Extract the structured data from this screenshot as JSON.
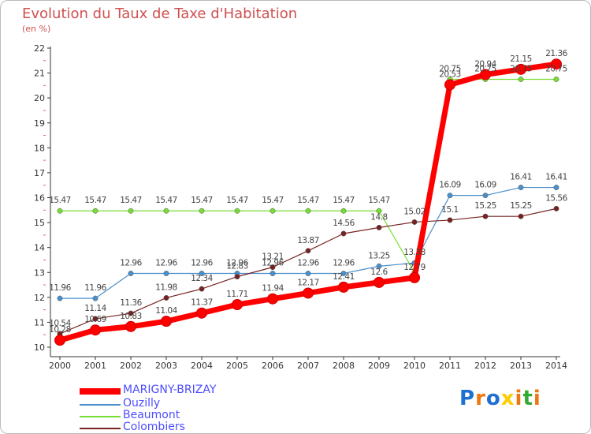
{
  "chart_data": {
    "type": "line",
    "title": "Evolution du Taux de Taxe d'Habitation",
    "unit_label": "(en %)",
    "categories": [
      "2000",
      "2001",
      "2002",
      "2003",
      "2004",
      "2005",
      "2006",
      "2007",
      "2008",
      "2009",
      "2010",
      "2011",
      "2012",
      "2013",
      "2014"
    ],
    "ylim": [
      10,
      22
    ],
    "yticks": [
      "10",
      "11",
      "12",
      "13",
      "14",
      "15",
      "16",
      "17",
      "18",
      "19",
      "20",
      "21",
      "22"
    ],
    "grid": false,
    "legend_position": "bottom-left",
    "series": [
      {
        "name": "MARIGNY-BRIZAY",
        "color": "#ff0000",
        "values": [
          10.28,
          10.69,
          10.83,
          11.04,
          11.37,
          11.71,
          11.94,
          12.17,
          12.41,
          12.6,
          12.79,
          20.53,
          20.94,
          21.15,
          21.36
        ],
        "labels": [
          "10.28",
          "10.69",
          "10.83",
          "11.04",
          "11.37",
          "11.71",
          "11.94",
          "12.17",
          "12.41",
          "12.6",
          "12.79",
          "20.53",
          "20.94",
          "21.15",
          "21.36"
        ]
      },
      {
        "name": "Ouzilly",
        "color": "#4a8fcc",
        "values": [
          11.96,
          11.96,
          12.96,
          12.96,
          12.96,
          12.96,
          12.96,
          12.96,
          12.96,
          13.25,
          13.38,
          16.09,
          16.09,
          16.41,
          16.41
        ],
        "labels": [
          "11.96",
          "11.96",
          "12.96",
          "12.96",
          "12.96",
          "12.96",
          "12.96",
          "12.96",
          "12.96",
          "13.25",
          "13.38",
          "16.09",
          "16.09",
          "16.41",
          "16.41"
        ]
      },
      {
        "name": "Beaumont",
        "color": "#77dd33",
        "values": [
          15.47,
          15.47,
          15.47,
          15.47,
          15.47,
          15.47,
          15.47,
          15.47,
          15.47,
          15.47,
          13.0,
          20.75,
          20.75,
          20.75,
          20.75
        ],
        "labels": [
          "15.47",
          "15.47",
          "15.47",
          "15.47",
          "15.47",
          "15.47",
          "15.47",
          "15.47",
          "15.47",
          "15.47",
          "",
          "20.75",
          "20.75",
          "20.75",
          "20.75"
        ]
      },
      {
        "name": "Colombiers",
        "color": "#772222",
        "values": [
          10.54,
          11.14,
          11.36,
          11.98,
          12.34,
          12.83,
          13.21,
          13.87,
          14.56,
          14.8,
          15.02,
          15.1,
          15.25,
          15.25,
          15.56
        ],
        "labels": [
          "10.54",
          "11.14",
          "11.36",
          "11.98",
          "12.34",
          "12.83",
          "13.21",
          "13.87",
          "14.56",
          "14.8",
          "15.02",
          "15.1",
          "15.25",
          "15.25",
          "15.56"
        ]
      }
    ]
  },
  "logo": {
    "text": "Proxiti",
    "colors": [
      "#1e6fd0",
      "#ee7711",
      "#1e6fd0",
      "#ffcc00",
      "#ee7711",
      "#33aa33",
      "#ee7711"
    ]
  }
}
